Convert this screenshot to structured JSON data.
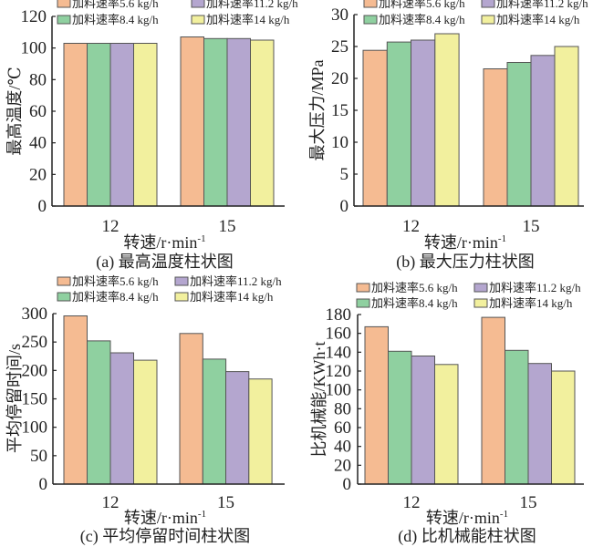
{
  "legend_colors": [
    "#f5bb92",
    "#8fd0a0",
    "#b4a6cf",
    "#f2f09e"
  ],
  "bar_stroke": "#555555",
  "chart_data": [
    {
      "type": "bar",
      "id": "a",
      "caption": "(a) 最高温度柱状图",
      "xlabel": "转速/r·min",
      "xlabel_sup": "-1",
      "ylabel": "最高温度/℃",
      "ylim": [
        0,
        120
      ],
      "yticks": [
        "0",
        "20",
        "40",
        "60",
        "80",
        "100",
        "120"
      ],
      "categories": [
        "12",
        "15"
      ],
      "series": [
        {
          "name": "加料速率5.6 kg/h",
          "values": [
            103,
            107
          ]
        },
        {
          "name": "加料速率8.4 kg/h",
          "values": [
            103,
            106
          ]
        },
        {
          "name": "加料速率11.2 kg/h",
          "values": [
            103,
            106
          ]
        },
        {
          "name": "加料速率14 kg/h",
          "values": [
            103,
            105
          ]
        }
      ],
      "legend": "top"
    },
    {
      "type": "bar",
      "id": "b",
      "caption": "(b) 最大压力柱状图",
      "xlabel": "转速/r·min",
      "xlabel_sup": "-1",
      "ylabel": "最大压力/MPa",
      "ylim": [
        0,
        30
      ],
      "yticks": [
        "0",
        "5",
        "10",
        "15",
        "20",
        "25",
        "30"
      ],
      "categories": [
        "12",
        "15"
      ],
      "series": [
        {
          "name": "加料速率5.6 kg/h",
          "values": [
            24.4,
            21.5
          ]
        },
        {
          "name": "加料速率8.4 kg/h",
          "values": [
            25.7,
            22.5
          ]
        },
        {
          "name": "加料速率11.2 kg/h",
          "values": [
            26.0,
            23.6
          ]
        },
        {
          "name": "加料速率14 kg/h",
          "values": [
            27.0,
            25.0
          ]
        }
      ],
      "legend": "top"
    },
    {
      "type": "bar",
      "id": "c",
      "caption": "(c) 平均停留时间柱状图",
      "xlabel": "转速/r·min",
      "xlabel_sup": "-1",
      "ylabel": "平均停留时间/s",
      "ylim": [
        0,
        300
      ],
      "yticks": [
        "0",
        "50",
        "100",
        "150",
        "200",
        "250",
        "300"
      ],
      "categories": [
        "12",
        "15"
      ],
      "series": [
        {
          "name": "加料速率5.6 kg/h",
          "values": [
            296,
            265
          ]
        },
        {
          "name": "加料速率8.4 kg/h",
          "values": [
            252,
            220
          ]
        },
        {
          "name": "加料速率11.2 kg/h",
          "values": [
            231,
            198
          ]
        },
        {
          "name": "加料速率14 kg/h",
          "values": [
            218,
            185
          ]
        }
      ],
      "legend": "top"
    },
    {
      "type": "bar",
      "id": "d",
      "caption": "(d) 比机械能柱状图",
      "xlabel": "转速/r·min",
      "xlabel_sup": "-1",
      "ylabel": "比机械能/KWh·t",
      "ylim": [
        0,
        180
      ],
      "yticks": [
        "0",
        "20",
        "40",
        "60",
        "80",
        "100",
        "120",
        "140",
        "160",
        "180"
      ],
      "categories": [
        "12",
        "15"
      ],
      "series": [
        {
          "name": "加料速率5.6 kg/h",
          "values": [
            167,
            177
          ]
        },
        {
          "name": "加料速率8.4 kg/h",
          "values": [
            141,
            142
          ]
        },
        {
          "name": "加料速率11.2 kg/h",
          "values": [
            136,
            128
          ]
        },
        {
          "name": "加料速率14 kg/h",
          "values": [
            127,
            120
          ]
        }
      ],
      "legend": "top"
    }
  ]
}
